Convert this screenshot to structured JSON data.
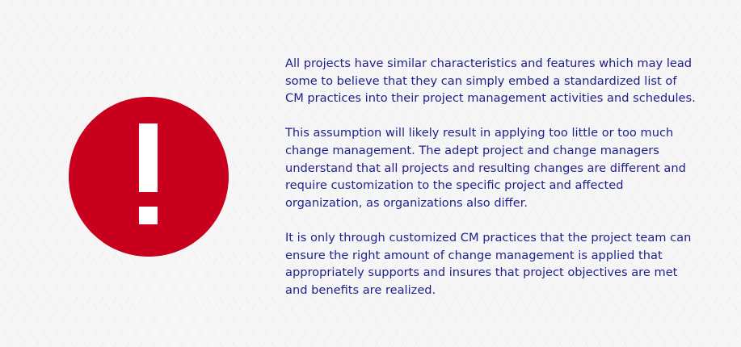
{
  "paragraphs": [
    "All projects have similar characteristics and features which may lead\nsome to believe that they can simply embed a standardized list of\nCM practices into their project management activities and schedules.",
    "This assumption will likely result in applying too little or too much\nchange management. The adept project and change managers\nunderstand that all projects and resulting changes are different and\nrequire customization to the specific project and affected\norganization, as organizations also differ.",
    " It is only through customized CM practices that the project team can\nensure the right amount of change management is applied that\nappropriately supports and insures that project objectives are met\nand benefits are realized."
  ],
  "icon": "exclamation-circle-icon",
  "colors": {
    "accent_red": "#c8001e",
    "text_navy": "#1f1f8c",
    "background": "#f6f6f6"
  }
}
